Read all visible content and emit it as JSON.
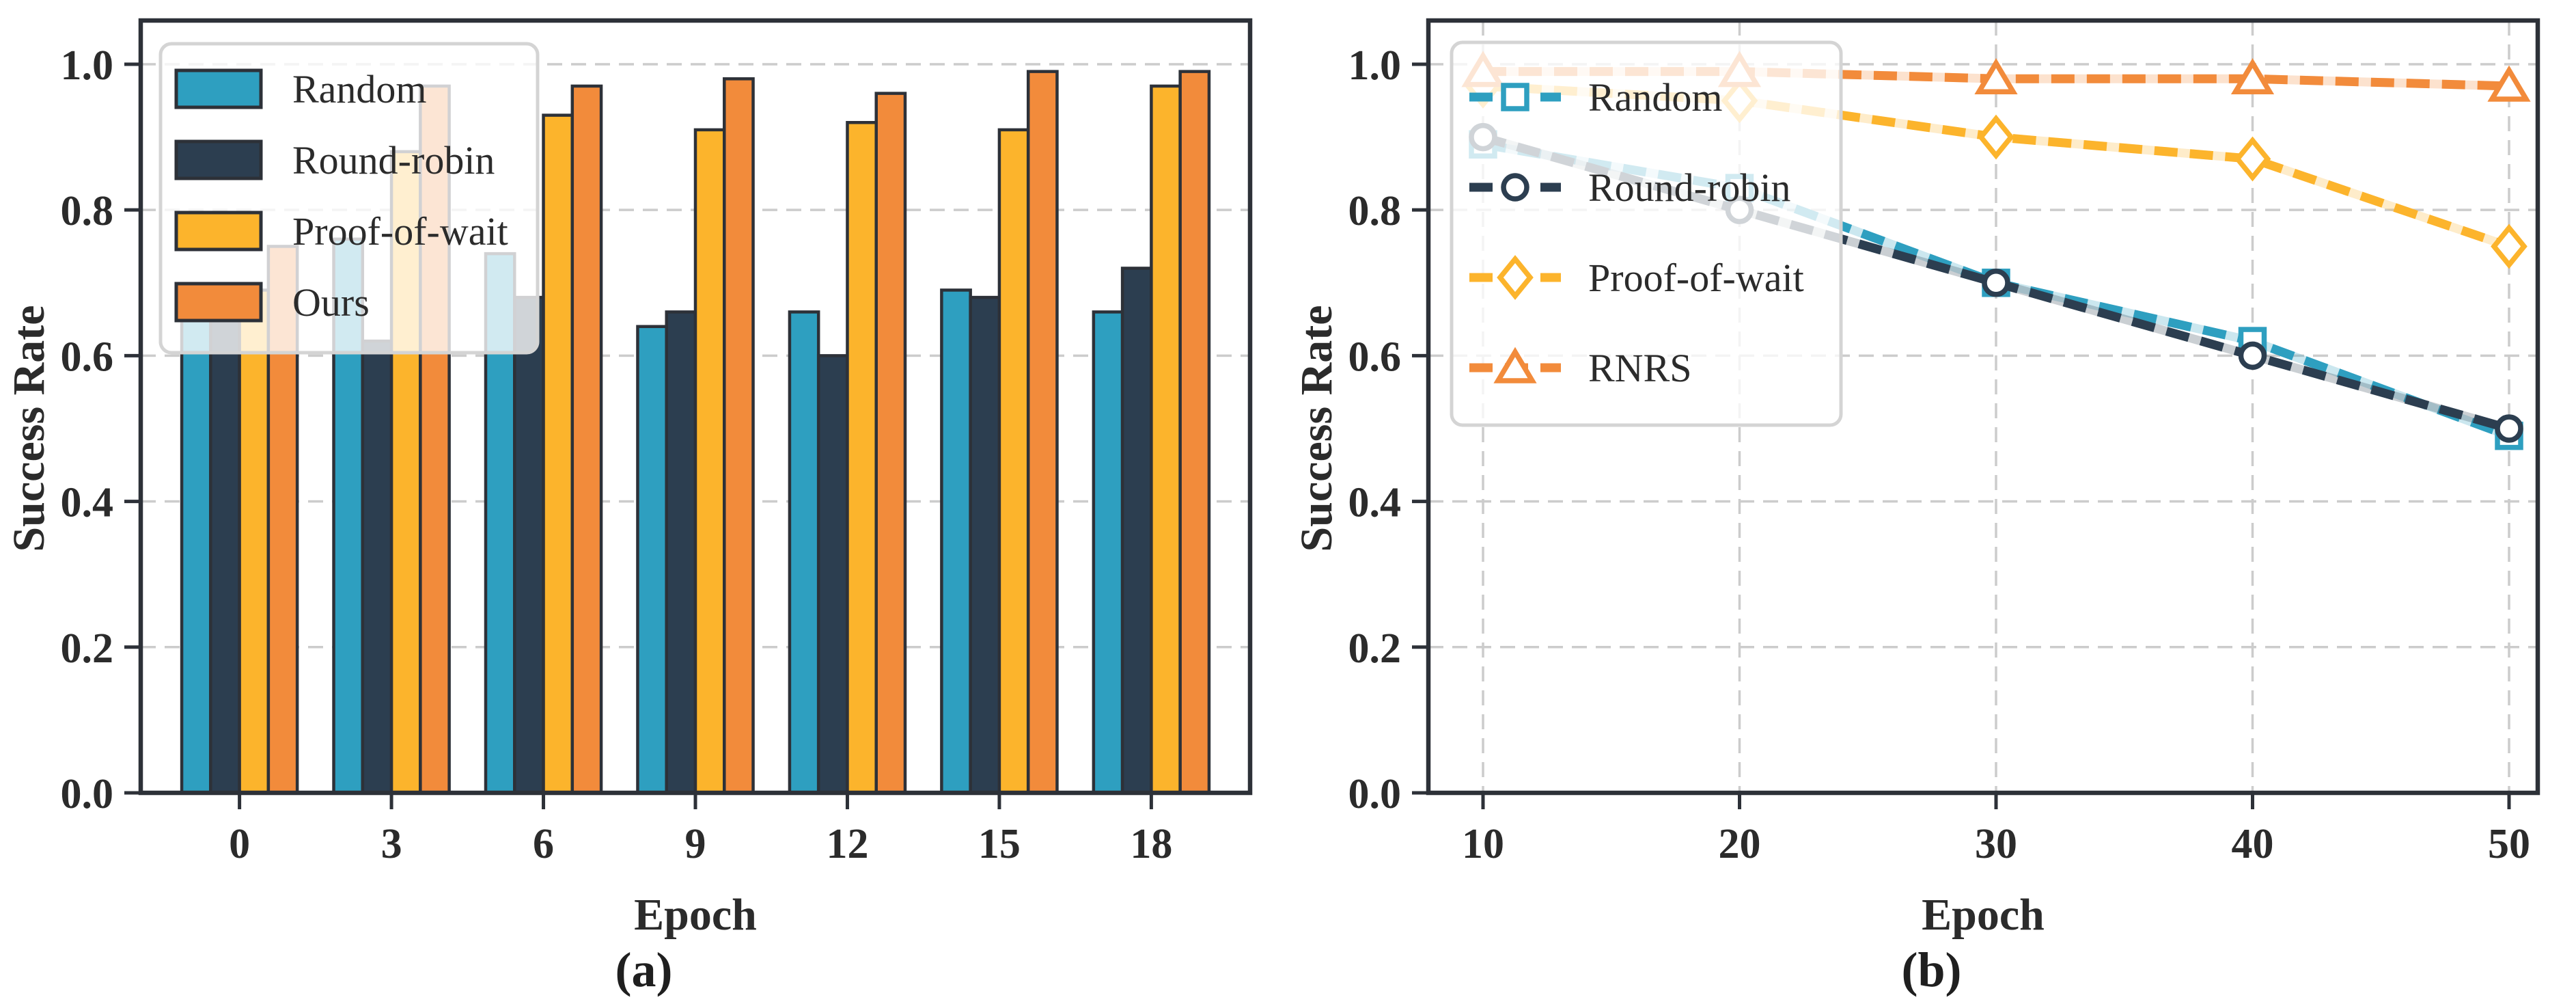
{
  "figure": {
    "description": "Two-panel success-rate comparison figure",
    "background": "#ffffff",
    "panels": [
      {
        "caption": "(a)"
      },
      {
        "caption": "(b)"
      }
    ]
  },
  "style": {
    "axis_color": "#2d3138",
    "grid_color": "#cccccc",
    "text_color": "#2b2b2b",
    "legend_border_color": "#d4d4d4",
    "legend_background": "rgba(255,255,255,0.78)",
    "marker_fill": "#ffffff"
  },
  "chart_data": [
    {
      "type": "bar",
      "caption": "(a)",
      "title": "",
      "xlabel": "Epoch",
      "ylabel": "Success Rate",
      "categories": [
        "0",
        "3",
        "6",
        "9",
        "12",
        "15",
        "18"
      ],
      "ylim": [
        0,
        1.06
      ],
      "yticks": [
        "0.0",
        "0.2",
        "0.4",
        "0.6",
        "0.8",
        "1.0"
      ],
      "grid": "horizontal dashed",
      "legend_position": "upper left",
      "series": [
        {
          "name": "Random",
          "color": "#2E9FC0",
          "values": [
            0.66,
            0.76,
            0.74,
            0.64,
            0.66,
            0.69,
            0.66
          ]
        },
        {
          "name": "Round-robin",
          "color": "#2C3E50",
          "values": [
            0.67,
            0.62,
            0.68,
            0.66,
            0.6,
            0.68,
            0.72
          ]
        },
        {
          "name": "Proof-of-wait",
          "color": "#FCB42C",
          "values": [
            0.69,
            0.88,
            0.93,
            0.91,
            0.92,
            0.91,
            0.97
          ]
        },
        {
          "name": "Ours",
          "color": "#F28B3B",
          "values": [
            0.75,
            0.97,
            0.97,
            0.98,
            0.96,
            0.99,
            0.99
          ]
        }
      ]
    },
    {
      "type": "line",
      "caption": "(b)",
      "title": "",
      "xlabel": "Epoch",
      "ylabel": "Success Rate",
      "x": [
        10,
        20,
        30,
        40,
        50
      ],
      "xticks": [
        "10",
        "20",
        "30",
        "40",
        "50"
      ],
      "ylim": [
        0,
        1.06
      ],
      "yticks": [
        "0.0",
        "0.2",
        "0.4",
        "0.6",
        "0.8",
        "1.0"
      ],
      "grid": "both dashed",
      "legend_position": "upper left",
      "line_style": "dashed",
      "series": [
        {
          "name": "Random",
          "color": "#2E9FC0",
          "marker": "square",
          "values": [
            0.89,
            0.83,
            0.7,
            0.62,
            0.49
          ]
        },
        {
          "name": "Round-robin",
          "color": "#2C3E50",
          "marker": "circle",
          "values": [
            0.9,
            0.8,
            0.7,
            0.6,
            0.5
          ]
        },
        {
          "name": "Proof-of-wait",
          "color": "#FCB42C",
          "marker": "diamond",
          "values": [
            0.97,
            0.95,
            0.9,
            0.87,
            0.75
          ]
        },
        {
          "name": "RNRS",
          "color": "#F28B3B",
          "marker": "triangle",
          "values": [
            0.99,
            0.99,
            0.98,
            0.98,
            0.97
          ]
        }
      ]
    }
  ]
}
